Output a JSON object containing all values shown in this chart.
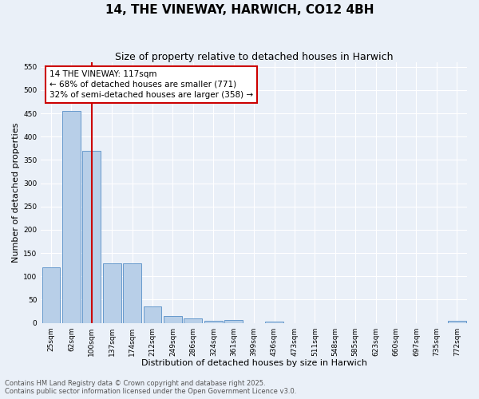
{
  "title": "14, THE VINEWAY, HARWICH, CO12 4BH",
  "subtitle": "Size of property relative to detached houses in Harwich",
  "xlabel": "Distribution of detached houses by size in Harwich",
  "ylabel": "Number of detached properties",
  "categories": [
    "25sqm",
    "62sqm",
    "100sqm",
    "137sqm",
    "174sqm",
    "212sqm",
    "249sqm",
    "286sqm",
    "324sqm",
    "361sqm",
    "399sqm",
    "436sqm",
    "473sqm",
    "511sqm",
    "548sqm",
    "585sqm",
    "623sqm",
    "660sqm",
    "697sqm",
    "735sqm",
    "772sqm"
  ],
  "values": [
    120,
    455,
    370,
    128,
    128,
    35,
    14,
    9,
    5,
    6,
    0,
    2,
    0,
    0,
    0,
    0,
    0,
    0,
    0,
    0,
    5
  ],
  "bar_color": "#b8cfe8",
  "bar_edge_color": "#6699cc",
  "vline_index": 2,
  "vline_color": "#cc0000",
  "annotation_text": "14 THE VINEWAY: 117sqm\n← 68% of detached houses are smaller (771)\n32% of semi-detached houses are larger (358) →",
  "annotation_box_color": "#ffffff",
  "annotation_box_edge": "#cc0000",
  "ylim": [
    0,
    560
  ],
  "yticks": [
    0,
    50,
    100,
    150,
    200,
    250,
    300,
    350,
    400,
    450,
    500,
    550
  ],
  "bg_color": "#eaf0f8",
  "grid_color": "#ffffff",
  "footer": "Contains HM Land Registry data © Crown copyright and database right 2025.\nContains public sector information licensed under the Open Government Licence v3.0.",
  "title_fontsize": 11,
  "subtitle_fontsize": 9,
  "xlabel_fontsize": 8,
  "ylabel_fontsize": 8,
  "tick_fontsize": 6.5,
  "annotation_fontsize": 7.5,
  "footer_fontsize": 6
}
